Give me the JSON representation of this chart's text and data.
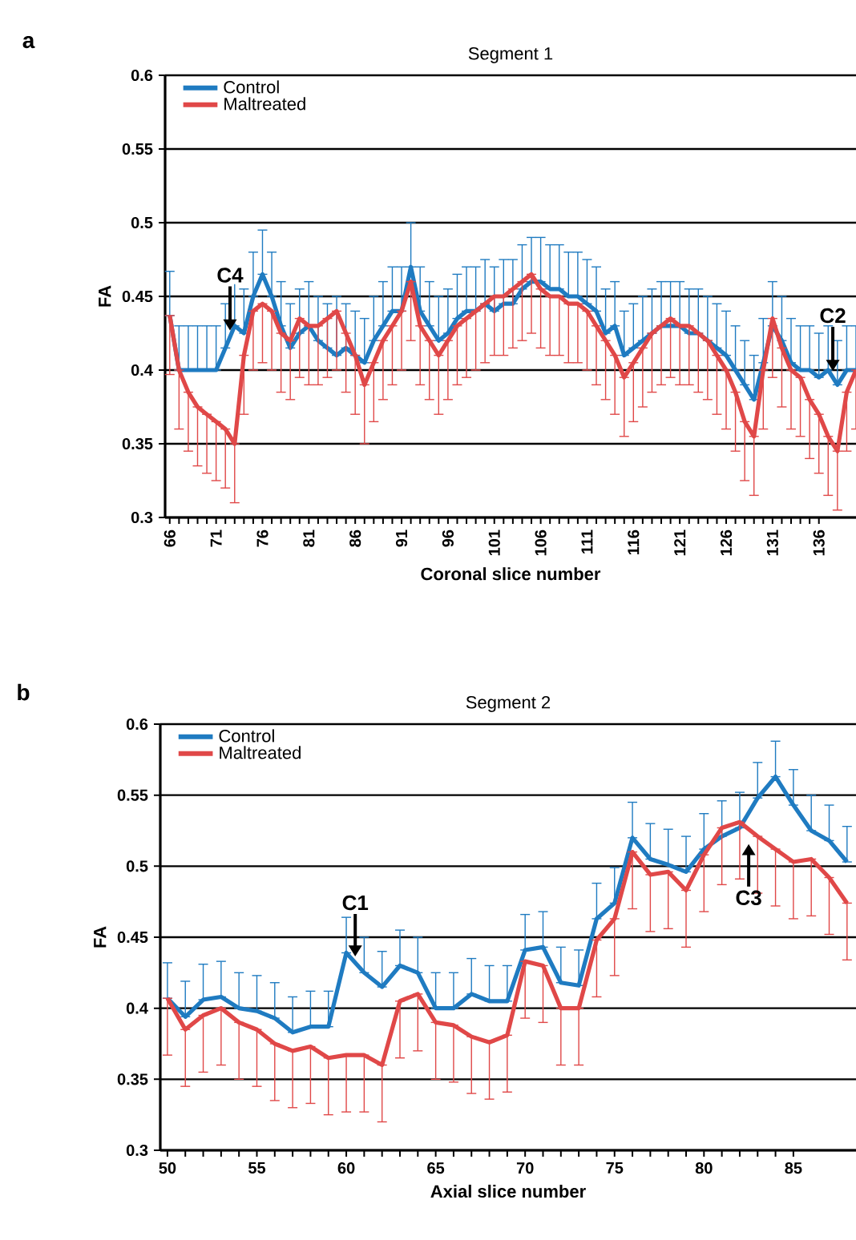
{
  "chart_data": [
    {
      "type": "line",
      "title": "Segment 1",
      "xlabel": "Coronal slice number",
      "ylabel": "FA",
      "grid": "y",
      "legend": "top left",
      "marker": "none",
      "xlim": [
        65.5,
        140
      ],
      "ylim": [
        0.3,
        0.6
      ],
      "xticks": [
        66,
        71,
        76,
        81,
        86,
        91,
        96,
        101,
        106,
        111,
        116,
        121,
        126,
        131,
        136
      ],
      "yticks": [
        0.3,
        0.35,
        0.4,
        0.45,
        0.5,
        0.55,
        0.6
      ],
      "x": [
        66,
        67,
        68,
        69,
        70,
        71,
        72,
        73,
        74,
        75,
        76,
        77,
        78,
        79,
        80,
        81,
        82,
        83,
        84,
        85,
        86,
        87,
        88,
        89,
        90,
        91,
        92,
        93,
        94,
        95,
        96,
        97,
        98,
        99,
        100,
        101,
        102,
        103,
        104,
        105,
        106,
        107,
        108,
        109,
        110,
        111,
        112,
        113,
        114,
        115,
        116,
        117,
        118,
        119,
        120,
        121,
        122,
        123,
        124,
        125,
        126,
        127,
        128,
        129,
        130,
        131,
        132,
        133,
        134,
        135,
        136,
        137,
        138,
        139,
        140
      ],
      "series": [
        {
          "name": "Control",
          "color": "#1f7bc1",
          "values": [
            0.437,
            0.4,
            0.4,
            0.4,
            0.4,
            0.4,
            0.415,
            0.43,
            0.425,
            0.45,
            0.465,
            0.45,
            0.43,
            0.415,
            0.425,
            0.43,
            0.42,
            0.415,
            0.41,
            0.415,
            0.41,
            0.405,
            0.42,
            0.43,
            0.44,
            0.44,
            0.47,
            0.44,
            0.43,
            0.42,
            0.425,
            0.435,
            0.44,
            0.44,
            0.445,
            0.44,
            0.445,
            0.445,
            0.455,
            0.46,
            0.46,
            0.455,
            0.455,
            0.45,
            0.45,
            0.445,
            0.44,
            0.425,
            0.43,
            0.41,
            0.415,
            0.42,
            0.425,
            0.43,
            0.43,
            0.43,
            0.425,
            0.425,
            0.42,
            0.415,
            0.41,
            0.4,
            0.39,
            0.38,
            0.405,
            0.43,
            0.42,
            0.405,
            0.4,
            0.4,
            0.395,
            0.4,
            0.39,
            0.4,
            0.4
          ],
          "errors": [
            [
              0.437,
              0.467
            ],
            [
              0.4,
              0.43
            ],
            [
              0.4,
              0.43
            ],
            [
              0.4,
              0.43
            ],
            [
              0.4,
              0.43
            ],
            [
              0.4,
              0.43
            ],
            [
              0.415,
              0.445
            ],
            [
              0.43,
              0.46
            ],
            [
              0.425,
              0.455
            ],
            [
              0.45,
              0.48
            ],
            [
              0.465,
              0.495
            ],
            [
              0.45,
              0.48
            ],
            [
              0.43,
              0.46
            ],
            [
              0.415,
              0.445
            ],
            [
              0.425,
              0.455
            ],
            [
              0.43,
              0.46
            ],
            [
              0.42,
              0.45
            ],
            [
              0.415,
              0.445
            ],
            [
              0.41,
              0.45
            ],
            [
              0.415,
              0.445
            ],
            [
              0.41,
              0.44
            ],
            [
              0.405,
              0.435
            ],
            [
              0.42,
              0.45
            ],
            [
              0.43,
              0.46
            ],
            [
              0.44,
              0.47
            ],
            [
              0.44,
              0.47
            ],
            [
              0.47,
              0.5
            ],
            [
              0.44,
              0.47
            ],
            [
              0.43,
              0.46
            ],
            [
              0.42,
              0.45
            ],
            [
              0.425,
              0.455
            ],
            [
              0.435,
              0.465
            ],
            [
              0.44,
              0.47
            ],
            [
              0.44,
              0.47
            ],
            [
              0.445,
              0.475
            ],
            [
              0.44,
              0.47
            ],
            [
              0.445,
              0.475
            ],
            [
              0.445,
              0.475
            ],
            [
              0.455,
              0.485
            ],
            [
              0.46,
              0.49
            ],
            [
              0.46,
              0.49
            ],
            [
              0.455,
              0.485
            ],
            [
              0.455,
              0.485
            ],
            [
              0.45,
              0.48
            ],
            [
              0.45,
              0.48
            ],
            [
              0.445,
              0.475
            ],
            [
              0.44,
              0.47
            ],
            [
              0.425,
              0.455
            ],
            [
              0.43,
              0.46
            ],
            [
              0.41,
              0.44
            ],
            [
              0.415,
              0.445
            ],
            [
              0.42,
              0.45
            ],
            [
              0.425,
              0.455
            ],
            [
              0.43,
              0.46
            ],
            [
              0.43,
              0.46
            ],
            [
              0.43,
              0.46
            ],
            [
              0.425,
              0.455
            ],
            [
              0.425,
              0.455
            ],
            [
              0.42,
              0.45
            ],
            [
              0.415,
              0.445
            ],
            [
              0.41,
              0.44
            ],
            [
              0.4,
              0.43
            ],
            [
              0.39,
              0.42
            ],
            [
              0.38,
              0.41
            ],
            [
              0.405,
              0.435
            ],
            [
              0.43,
              0.46
            ],
            [
              0.42,
              0.45
            ],
            [
              0.405,
              0.435
            ],
            [
              0.4,
              0.43
            ],
            [
              0.4,
              0.43
            ],
            [
              0.395,
              0.425
            ],
            [
              0.4,
              0.43
            ],
            [
              0.39,
              0.42
            ],
            [
              0.4,
              0.43
            ],
            [
              0.4,
              0.43
            ]
          ]
        },
        {
          "name": "Maltreated",
          "color": "#e04848",
          "values": [
            0.437,
            0.4,
            0.385,
            0.375,
            0.37,
            0.365,
            0.36,
            0.35,
            0.41,
            0.44,
            0.445,
            0.44,
            0.425,
            0.42,
            0.435,
            0.43,
            0.43,
            0.435,
            0.44,
            0.425,
            0.41,
            0.39,
            0.405,
            0.42,
            0.43,
            0.44,
            0.46,
            0.43,
            0.42,
            0.41,
            0.42,
            0.43,
            0.435,
            0.44,
            0.445,
            0.45,
            0.45,
            0.455,
            0.46,
            0.465,
            0.455,
            0.45,
            0.45,
            0.445,
            0.445,
            0.44,
            0.43,
            0.42,
            0.41,
            0.395,
            0.405,
            0.415,
            0.425,
            0.43,
            0.435,
            0.43,
            0.43,
            0.425,
            0.42,
            0.41,
            0.4,
            0.385,
            0.365,
            0.355,
            0.4,
            0.435,
            0.415,
            0.4,
            0.395,
            0.38,
            0.37,
            0.355,
            0.345,
            0.385,
            0.4
          ],
          "errors": [
            [
              0.397,
              0.437
            ],
            [
              0.36,
              0.4
            ],
            [
              0.345,
              0.385
            ],
            [
              0.335,
              0.375
            ],
            [
              0.33,
              0.37
            ],
            [
              0.325,
              0.365
            ],
            [
              0.32,
              0.36
            ],
            [
              0.31,
              0.35
            ],
            [
              0.37,
              0.41
            ],
            [
              0.4,
              0.44
            ],
            [
              0.405,
              0.445
            ],
            [
              0.4,
              0.44
            ],
            [
              0.385,
              0.425
            ],
            [
              0.38,
              0.42
            ],
            [
              0.395,
              0.435
            ],
            [
              0.39,
              0.43
            ],
            [
              0.39,
              0.43
            ],
            [
              0.395,
              0.435
            ],
            [
              0.4,
              0.44
            ],
            [
              0.385,
              0.425
            ],
            [
              0.37,
              0.41
            ],
            [
              0.35,
              0.39
            ],
            [
              0.365,
              0.405
            ],
            [
              0.38,
              0.42
            ],
            [
              0.39,
              0.43
            ],
            [
              0.4,
              0.44
            ],
            [
              0.42,
              0.46
            ],
            [
              0.39,
              0.43
            ],
            [
              0.38,
              0.42
            ],
            [
              0.37,
              0.41
            ],
            [
              0.38,
              0.42
            ],
            [
              0.39,
              0.43
            ],
            [
              0.395,
              0.435
            ],
            [
              0.4,
              0.44
            ],
            [
              0.405,
              0.445
            ],
            [
              0.41,
              0.45
            ],
            [
              0.41,
              0.45
            ],
            [
              0.415,
              0.455
            ],
            [
              0.42,
              0.46
            ],
            [
              0.425,
              0.465
            ],
            [
              0.415,
              0.455
            ],
            [
              0.41,
              0.45
            ],
            [
              0.41,
              0.45
            ],
            [
              0.405,
              0.445
            ],
            [
              0.405,
              0.445
            ],
            [
              0.4,
              0.44
            ],
            [
              0.39,
              0.43
            ],
            [
              0.38,
              0.42
            ],
            [
              0.37,
              0.41
            ],
            [
              0.355,
              0.395
            ],
            [
              0.365,
              0.405
            ],
            [
              0.375,
              0.415
            ],
            [
              0.385,
              0.425
            ],
            [
              0.39,
              0.43
            ],
            [
              0.395,
              0.435
            ],
            [
              0.39,
              0.43
            ],
            [
              0.39,
              0.43
            ],
            [
              0.385,
              0.425
            ],
            [
              0.38,
              0.42
            ],
            [
              0.37,
              0.41
            ],
            [
              0.36,
              0.4
            ],
            [
              0.345,
              0.385
            ],
            [
              0.325,
              0.365
            ],
            [
              0.315,
              0.355
            ],
            [
              0.36,
              0.4
            ],
            [
              0.395,
              0.435
            ],
            [
              0.375,
              0.415
            ],
            [
              0.36,
              0.4
            ],
            [
              0.355,
              0.395
            ],
            [
              0.34,
              0.38
            ],
            [
              0.33,
              0.37
            ],
            [
              0.315,
              0.355
            ],
            [
              0.305,
              0.345
            ],
            [
              0.345,
              0.385
            ],
            [
              0.36,
              0.4
            ]
          ]
        }
      ],
      "annotations": [
        "a",
        {
          "text": "C4",
          "x": 72.5,
          "y": 0.4225
        },
        {
          "text": "C2",
          "x": 137.5,
          "y": 0.395
        }
      ]
    },
    {
      "type": "line",
      "title": "Segment 2",
      "xlabel": "Axial slice number",
      "ylabel": "FA",
      "grid": "y",
      "legend": "top left",
      "marker": "none",
      "xlim": [
        49.6,
        88.5
      ],
      "ylim": [
        0.3,
        0.6
      ],
      "xticks": [
        50,
        55,
        60,
        65,
        70,
        75,
        80,
        85
      ],
      "yticks": [
        0.3,
        0.35,
        0.4,
        0.45,
        0.5,
        0.55,
        0.6
      ],
      "x": [
        50,
        51,
        52,
        53,
        54,
        55,
        56,
        57,
        58,
        59,
        60,
        61,
        62,
        63,
        64,
        65,
        66,
        67,
        68,
        69,
        70,
        71,
        72,
        73,
        74,
        75,
        76,
        77,
        78,
        79,
        80,
        81,
        82,
        83,
        84,
        85,
        86,
        87,
        88
      ],
      "series": [
        {
          "name": "Control",
          "color": "#1f7bc1",
          "values": [
            0.407,
            0.394,
            0.406,
            0.408,
            0.4,
            0.398,
            0.393,
            0.383,
            0.387,
            0.387,
            0.439,
            0.425,
            0.415,
            0.43,
            0.425,
            0.4,
            0.4,
            0.41,
            0.405,
            0.405,
            0.441,
            0.443,
            0.418,
            0.416,
            0.463,
            0.474,
            0.52,
            0.505,
            0.501,
            0.496,
            0.512,
            0.521,
            0.527,
            0.548,
            0.563,
            0.543,
            0.525,
            0.518,
            0.503
          ],
          "errors": [
            [
              0.407,
              0.432
            ],
            [
              0.394,
              0.419
            ],
            [
              0.406,
              0.431
            ],
            [
              0.408,
              0.433
            ],
            [
              0.4,
              0.425
            ],
            [
              0.398,
              0.423
            ],
            [
              0.393,
              0.418
            ],
            [
              0.383,
              0.408
            ],
            [
              0.387,
              0.412
            ],
            [
              0.387,
              0.412
            ],
            [
              0.439,
              0.464
            ],
            [
              0.425,
              0.45
            ],
            [
              0.415,
              0.44
            ],
            [
              0.43,
              0.455
            ],
            [
              0.425,
              0.45
            ],
            [
              0.4,
              0.425
            ],
            [
              0.4,
              0.425
            ],
            [
              0.41,
              0.435
            ],
            [
              0.405,
              0.43
            ],
            [
              0.405,
              0.43
            ],
            [
              0.441,
              0.466
            ],
            [
              0.443,
              0.468
            ],
            [
              0.418,
              0.443
            ],
            [
              0.416,
              0.441
            ],
            [
              0.463,
              0.488
            ],
            [
              0.474,
              0.499
            ],
            [
              0.52,
              0.545
            ],
            [
              0.505,
              0.53
            ],
            [
              0.501,
              0.526
            ],
            [
              0.496,
              0.521
            ],
            [
              0.512,
              0.537
            ],
            [
              0.521,
              0.546
            ],
            [
              0.527,
              0.552
            ],
            [
              0.548,
              0.573
            ],
            [
              0.563,
              0.588
            ],
            [
              0.543,
              0.568
            ],
            [
              0.525,
              0.55
            ],
            [
              0.518,
              0.543
            ],
            [
              0.503,
              0.528
            ]
          ]
        },
        {
          "name": "Maltreated",
          "color": "#e04848",
          "values": [
            0.407,
            0.385,
            0.395,
            0.4,
            0.39,
            0.385,
            0.375,
            0.37,
            0.373,
            0.365,
            0.367,
            0.367,
            0.36,
            0.405,
            0.41,
            0.39,
            0.388,
            0.38,
            0.376,
            0.381,
            0.433,
            0.43,
            0.4,
            0.4,
            0.448,
            0.463,
            0.51,
            0.494,
            0.496,
            0.483,
            0.508,
            0.527,
            0.531,
            0.521,
            0.512,
            0.503,
            0.505,
            0.492,
            0.474
          ],
          "errors": [
            [
              0.367,
              0.407
            ],
            [
              0.345,
              0.385
            ],
            [
              0.355,
              0.395
            ],
            [
              0.36,
              0.4
            ],
            [
              0.35,
              0.39
            ],
            [
              0.345,
              0.385
            ],
            [
              0.335,
              0.375
            ],
            [
              0.33,
              0.37
            ],
            [
              0.333,
              0.373
            ],
            [
              0.325,
              0.365
            ],
            [
              0.327,
              0.367
            ],
            [
              0.327,
              0.367
            ],
            [
              0.32,
              0.36
            ],
            [
              0.365,
              0.405
            ],
            [
              0.37,
              0.41
            ],
            [
              0.35,
              0.39
            ],
            [
              0.348,
              0.388
            ],
            [
              0.34,
              0.38
            ],
            [
              0.336,
              0.376
            ],
            [
              0.341,
              0.381
            ],
            [
              0.393,
              0.433
            ],
            [
              0.39,
              0.43
            ],
            [
              0.36,
              0.4
            ],
            [
              0.36,
              0.4
            ],
            [
              0.408,
              0.448
            ],
            [
              0.423,
              0.463
            ],
            [
              0.47,
              0.51
            ],
            [
              0.454,
              0.494
            ],
            [
              0.456,
              0.496
            ],
            [
              0.443,
              0.483
            ],
            [
              0.468,
              0.508
            ],
            [
              0.487,
              0.527
            ],
            [
              0.491,
              0.531
            ],
            [
              0.481,
              0.521
            ],
            [
              0.472,
              0.512
            ],
            [
              0.463,
              0.503
            ],
            [
              0.465,
              0.505
            ],
            [
              0.452,
              0.492
            ],
            [
              0.434,
              0.474
            ]
          ]
        }
      ],
      "annotations": [
        "b",
        {
          "text": "C1",
          "x": 60.5,
          "y": 0.432
        },
        {
          "text": "C3",
          "x": 82.5,
          "y": 0.52
        }
      ]
    }
  ]
}
